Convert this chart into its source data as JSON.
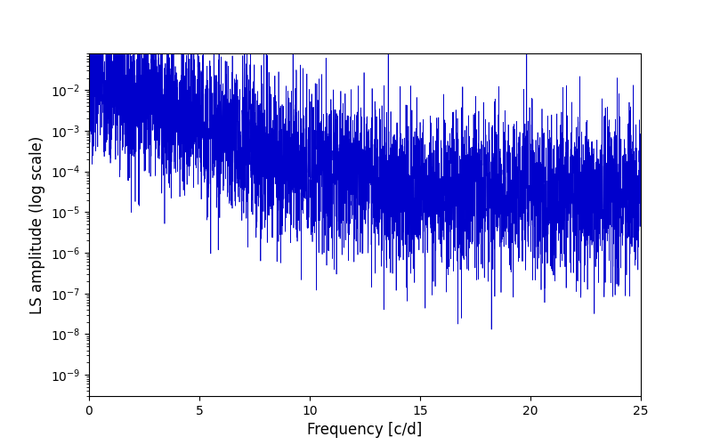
{
  "title": "",
  "xlabel": "Frequency [c/d]",
  "ylabel": "LS amplitude (log scale)",
  "xmin": 0,
  "xmax": 25,
  "ymin": 3e-10,
  "ymax": 0.08,
  "line_color": "#0000cc",
  "line_width": 0.5,
  "background_color": "#ffffff",
  "seed": 7,
  "n_points": 5000,
  "figsize": [
    8.0,
    5.0
  ],
  "dpi": 100
}
